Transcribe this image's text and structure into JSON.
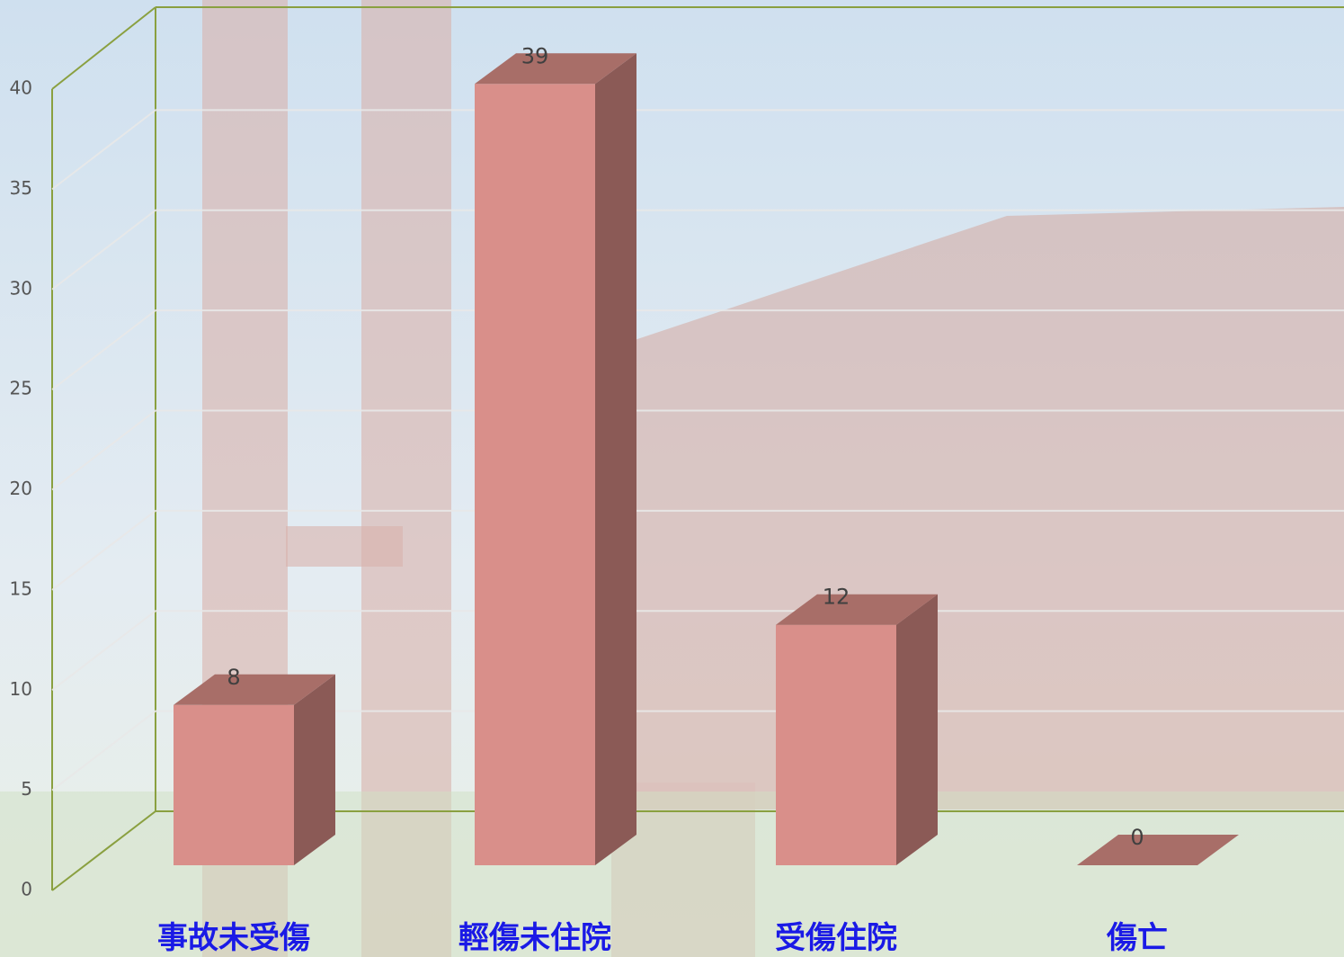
{
  "chart_data": {
    "type": "bar3d",
    "categories": [
      "事故未受傷",
      "輕傷未住院",
      "受傷住院",
      "傷亡"
    ],
    "values": [
      8,
      39,
      12,
      0
    ],
    "color": "#d98f8a",
    "ylim": [
      0,
      40
    ],
    "yticks": [
      0,
      5,
      10,
      15,
      20,
      25,
      30,
      35,
      40
    ],
    "grid": true
  }
}
